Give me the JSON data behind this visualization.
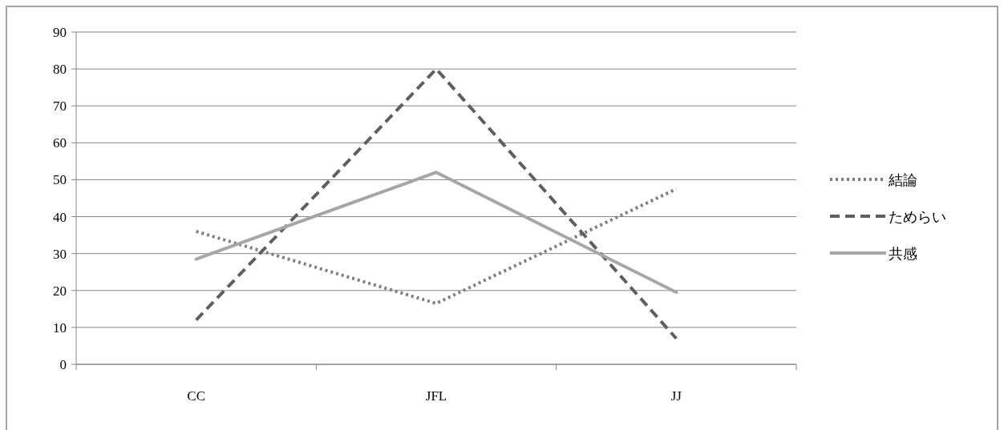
{
  "chart_data": {
    "type": "line",
    "categories": [
      "CC",
      "JFL",
      "JJ"
    ],
    "ylim": [
      0,
      90
    ],
    "yticks": [
      0,
      10,
      20,
      30,
      40,
      50,
      60,
      70,
      80,
      90
    ],
    "grid": "y",
    "legend": "right",
    "marker": "none",
    "series": [
      {
        "name": "結論",
        "color": "#7f7f7f",
        "line_style": "dotted",
        "values": [
          36,
          16.5,
          47.5
        ]
      },
      {
        "name": "ためらい",
        "color": "#5f5f5f",
        "line_style": "dashed",
        "values": [
          12,
          80,
          7
        ]
      },
      {
        "name": "共感",
        "color": "#a6a6a6",
        "line_style": "solid",
        "values": [
          28.5,
          52,
          19.5
        ]
      }
    ]
  }
}
